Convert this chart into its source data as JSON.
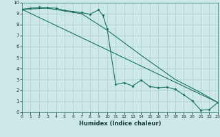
{
  "xlabel": "Humidex (Indice chaleur)",
  "bg_color": "#cce8e8",
  "grid_color": "#aacccc",
  "line_color": "#1a7060",
  "xlim": [
    0,
    23
  ],
  "ylim": [
    0,
    10
  ],
  "xticks": [
    0,
    1,
    2,
    3,
    4,
    5,
    6,
    7,
    8,
    9,
    10,
    11,
    12,
    13,
    14,
    15,
    16,
    17,
    18,
    19,
    20,
    21,
    22,
    23
  ],
  "yticks": [
    0,
    1,
    2,
    3,
    4,
    5,
    6,
    7,
    8,
    9,
    10
  ],
  "curve1_x": [
    0,
    1,
    2,
    3,
    4,
    5,
    6,
    7,
    8,
    9,
    9.5,
    10,
    11,
    12,
    13,
    14,
    15,
    16,
    17,
    18,
    19,
    20,
    21,
    22,
    23
  ],
  "curve1_y": [
    9.4,
    9.5,
    9.6,
    9.55,
    9.5,
    9.3,
    9.2,
    9.1,
    8.95,
    9.35,
    8.85,
    7.65,
    2.55,
    2.7,
    2.4,
    2.95,
    2.35,
    2.25,
    2.3,
    2.1,
    1.6,
    1.05,
    0.2,
    0.25,
    0.9
  ],
  "line1_x": [
    0,
    23
  ],
  "line1_y": [
    9.4,
    0.9
  ],
  "line2_x": [
    0,
    3,
    7,
    10,
    14,
    18,
    21,
    23
  ],
  "line2_y": [
    9.4,
    9.5,
    9.0,
    7.5,
    5.2,
    3.0,
    1.8,
    0.9
  ]
}
